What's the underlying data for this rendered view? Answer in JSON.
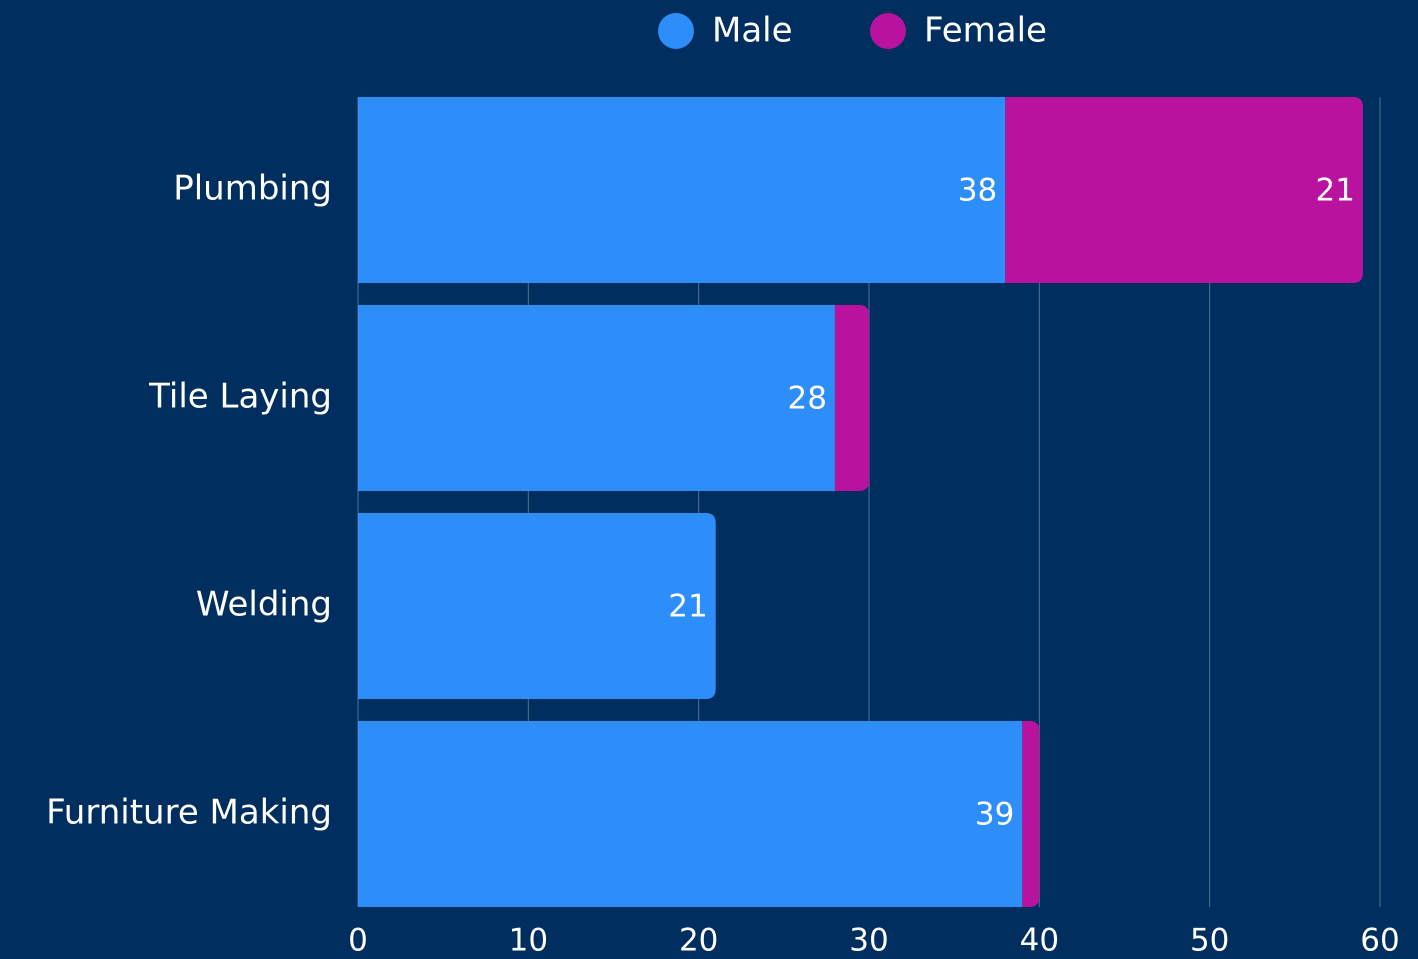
{
  "chart_data": {
    "type": "stacked-bar-horizontal",
    "categories": [
      "Plumbing",
      "Tile Laying",
      "Welding",
      "Furniture Making"
    ],
    "series": [
      {
        "name": "Male",
        "color": "#2d8ef9",
        "values": [
          38,
          28,
          21,
          39
        ]
      },
      {
        "name": "Female",
        "color": "#b9129f",
        "values": [
          21,
          2,
          0,
          1
        ]
      }
    ],
    "xlim": [
      0,
      60
    ],
    "xticks": [
      0,
      10,
      20,
      30,
      40,
      50,
      60
    ],
    "grid": true,
    "legend": "top"
  }
}
